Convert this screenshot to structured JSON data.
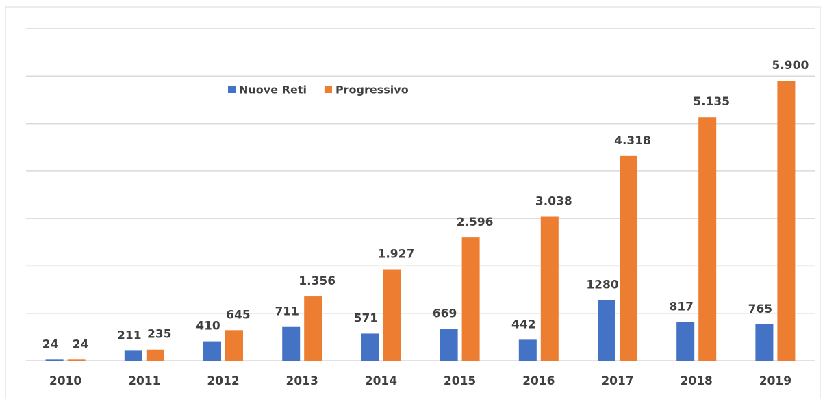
{
  "chart_data": {
    "type": "bar",
    "categories": [
      "2010",
      "2011",
      "2012",
      "2013",
      "2014",
      "2015",
      "2016",
      "2017",
      "2018",
      "2019"
    ],
    "series": [
      {
        "name": "Nuove Reti",
        "color": "#4472c4",
        "values": [
          24,
          211,
          410,
          711,
          571,
          669,
          442,
          1280,
          817,
          765
        ]
      },
      {
        "name": "Progressivo",
        "color": "#ed7d31",
        "values": [
          24,
          235,
          645,
          1356,
          1927,
          2596,
          3038,
          4318,
          5135,
          5900
        ],
        "value_labels": [
          "24",
          "235",
          "645",
          "1.356",
          "1.927",
          "2.596",
          "3.038",
          "4.318",
          "5.135",
          "5.900"
        ]
      }
    ],
    "ylim": [
      0,
      7000
    ],
    "yticks": [
      0,
      1000,
      2000,
      3000,
      4000,
      5000,
      6000,
      7000
    ],
    "grid": true,
    "legend": "top"
  }
}
